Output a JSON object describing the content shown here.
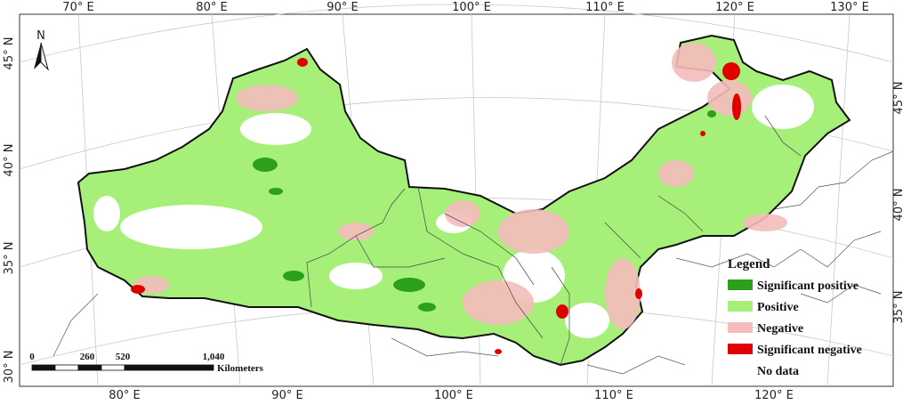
{
  "map": {
    "top_lon_ticks": [
      "70° E",
      "80° E",
      "90° E",
      "100° E",
      "110° E",
      "120° E",
      "130° E"
    ],
    "bottom_lon_ticks": [
      "80° E",
      "90° E",
      "100° E",
      "110° E",
      "120° E"
    ],
    "left_lat_ticks": [
      "45° N",
      "40° N",
      "35° N",
      "30° N"
    ],
    "right_lat_ticks": [
      "45° N",
      "40° N",
      "35° N"
    ],
    "north_arrow_label": "N"
  },
  "legend": {
    "title": "Legend",
    "items": [
      {
        "label": "Significant positive",
        "color": "#2ca01c"
      },
      {
        "label": "Positive",
        "color": "#a6f07a"
      },
      {
        "label": "Negative",
        "color": "#f5bcbc"
      },
      {
        "label": "Significant negative",
        "color": "#e00000"
      },
      {
        "label": "No data",
        "color": "#ffffff"
      }
    ]
  },
  "scale_bar": {
    "ticks": [
      "0",
      "260",
      "520",
      "1,040"
    ],
    "unit": "Kilometers"
  },
  "colors": {
    "sig_positive": "#2ca01c",
    "positive": "#a6f07a",
    "negative": "#f5bcbc",
    "sig_negative": "#e00000",
    "no_data": "#ffffff",
    "border": "#111111",
    "graticule": "#c8c8c8"
  }
}
